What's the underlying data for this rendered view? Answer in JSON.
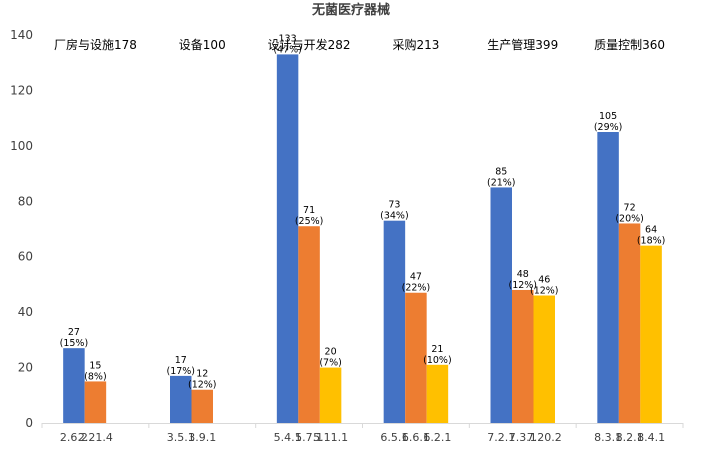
{
  "chart_data": {
    "type": "bar",
    "title": "无菌医疗器械",
    "ylim": [
      0,
      140
    ],
    "yticks": [
      0,
      20,
      40,
      60,
      80,
      100,
      120,
      140
    ],
    "grid": false,
    "legend": "none",
    "colors": [
      "#4472C4",
      "#ED7D31",
      "#FFC000"
    ],
    "groups": [
      {
        "label": "厂房与设施178",
        "bars": [
          {
            "x": "2.6.2",
            "value": 27,
            "pct": "(15%)"
          },
          {
            "x": "2.21.4",
            "value": 15,
            "pct": "(8%)"
          }
        ]
      },
      {
        "label": "设备100",
        "bars": [
          {
            "x": "3.5.1",
            "value": 17,
            "pct": "(17%)"
          },
          {
            "x": "3.9.1",
            "value": 12,
            "pct": "(12%)"
          }
        ]
      },
      {
        "label": "设计与开发282",
        "bars": [
          {
            "x": "5.4.1",
            "value": 133,
            "pct": "(47%)"
          },
          {
            "x": "5.7.1",
            "value": 71,
            "pct": "(25%)"
          },
          {
            "x": "5.11.1",
            "value": 20,
            "pct": "(7%)"
          }
        ]
      },
      {
        "label": "采购213",
        "bars": [
          {
            "x": "6.5.1",
            "value": 73,
            "pct": "(34%)"
          },
          {
            "x": "6.6.1",
            "value": 47,
            "pct": "(22%)"
          },
          {
            "x": "6.2.1",
            "value": 21,
            "pct": "(10%)"
          }
        ]
      },
      {
        "label": "生产管理399",
        "bars": [
          {
            "x": "7.2.1",
            "value": 85,
            "pct": "(21%)"
          },
          {
            "x": "7.3.1",
            "value": 48,
            "pct": "(12%)"
          },
          {
            "x": "7.20.2",
            "value": 46,
            "pct": "(12%)"
          }
        ]
      },
      {
        "label": "质量控制360",
        "bars": [
          {
            "x": "8.3.1",
            "value": 105,
            "pct": "(29%)"
          },
          {
            "x": "8.2.1",
            "value": 72,
            "pct": "(20%)"
          },
          {
            "x": "8.4.1",
            "value": 64,
            "pct": "(18%)"
          }
        ]
      }
    ]
  }
}
